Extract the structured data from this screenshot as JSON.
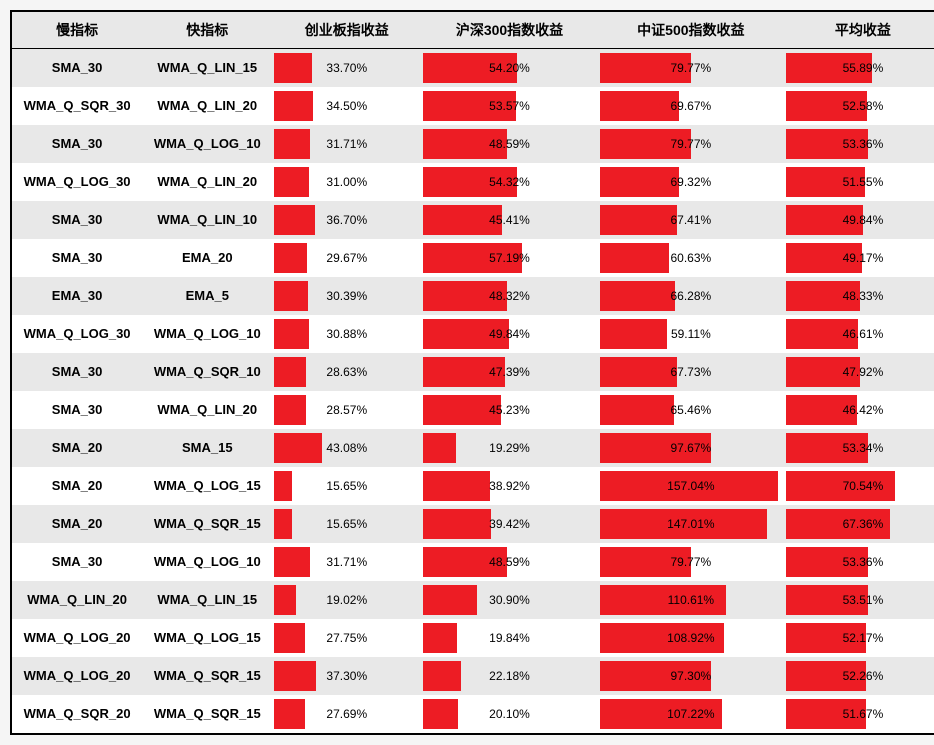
{
  "table": {
    "type": "table-with-bars",
    "headers": [
      "慢指标",
      "快指标",
      "创业板指收益",
      "沪深300指数收益",
      "中证500指数收益",
      "平均收益"
    ],
    "bar_color": "#ed1c24",
    "header_bg": "#e8e8e8",
    "row_odd_bg": "#e8e8e8",
    "row_even_bg": "#ffffff",
    "border_color": "#000000",
    "text_color": "#000000",
    "font_size_header": 14,
    "font_size_cell": 13,
    "font_size_bar": 12,
    "bar_max_values": [
      130,
      100,
      160,
      100
    ],
    "rows": [
      {
        "slow": "SMA_30",
        "fast": "WMA_Q_LIN_15",
        "v1": 33.7,
        "v2": 54.2,
        "v3": 79.77,
        "v4": 55.89
      },
      {
        "slow": "WMA_Q_SQR_30",
        "fast": "WMA_Q_LIN_20",
        "v1": 34.5,
        "v2": 53.57,
        "v3": 69.67,
        "v4": 52.58
      },
      {
        "slow": "SMA_30",
        "fast": "WMA_Q_LOG_10",
        "v1": 31.71,
        "v2": 48.59,
        "v3": 79.77,
        "v4": 53.36
      },
      {
        "slow": "WMA_Q_LOG_30",
        "fast": "WMA_Q_LIN_20",
        "v1": 31.0,
        "v2": 54.32,
        "v3": 69.32,
        "v4": 51.55
      },
      {
        "slow": "SMA_30",
        "fast": "WMA_Q_LIN_10",
        "v1": 36.7,
        "v2": 45.41,
        "v3": 67.41,
        "v4": 49.84
      },
      {
        "slow": "SMA_30",
        "fast": "EMA_20",
        "v1": 29.67,
        "v2": 57.19,
        "v3": 60.63,
        "v4": 49.17
      },
      {
        "slow": "EMA_30",
        "fast": "EMA_5",
        "v1": 30.39,
        "v2": 48.32,
        "v3": 66.28,
        "v4": 48.33
      },
      {
        "slow": "WMA_Q_LOG_30",
        "fast": "WMA_Q_LOG_10",
        "v1": 30.88,
        "v2": 49.84,
        "v3": 59.11,
        "v4": 46.61
      },
      {
        "slow": "SMA_30",
        "fast": "WMA_Q_SQR_10",
        "v1": 28.63,
        "v2": 47.39,
        "v3": 67.73,
        "v4": 47.92
      },
      {
        "slow": "SMA_30",
        "fast": "WMA_Q_LIN_20",
        "v1": 28.57,
        "v2": 45.23,
        "v3": 65.46,
        "v4": 46.42
      },
      {
        "slow": "SMA_20",
        "fast": "SMA_15",
        "v1": 43.08,
        "v2": 19.29,
        "v3": 97.67,
        "v4": 53.34
      },
      {
        "slow": "SMA_20",
        "fast": "WMA_Q_LOG_15",
        "v1": 15.65,
        "v2": 38.92,
        "v3": 157.04,
        "v4": 70.54
      },
      {
        "slow": "SMA_20",
        "fast": "WMA_Q_SQR_15",
        "v1": 15.65,
        "v2": 39.42,
        "v3": 147.01,
        "v4": 67.36
      },
      {
        "slow": "SMA_30",
        "fast": "WMA_Q_LOG_10",
        "v1": 31.71,
        "v2": 48.59,
        "v3": 79.77,
        "v4": 53.36
      },
      {
        "slow": "WMA_Q_LIN_20",
        "fast": "WMA_Q_LIN_15",
        "v1": 19.02,
        "v2": 30.9,
        "v3": 110.61,
        "v4": 53.51
      },
      {
        "slow": "WMA_Q_LOG_20",
        "fast": "WMA_Q_LOG_15",
        "v1": 27.75,
        "v2": 19.84,
        "v3": 108.92,
        "v4": 52.17
      },
      {
        "slow": "WMA_Q_LOG_20",
        "fast": "WMA_Q_SQR_15",
        "v1": 37.3,
        "v2": 22.18,
        "v3": 97.3,
        "v4": 52.26
      },
      {
        "slow": "WMA_Q_SQR_20",
        "fast": "WMA_Q_SQR_15",
        "v1": 27.69,
        "v2": 20.1,
        "v3": 107.22,
        "v4": 51.67
      }
    ]
  }
}
